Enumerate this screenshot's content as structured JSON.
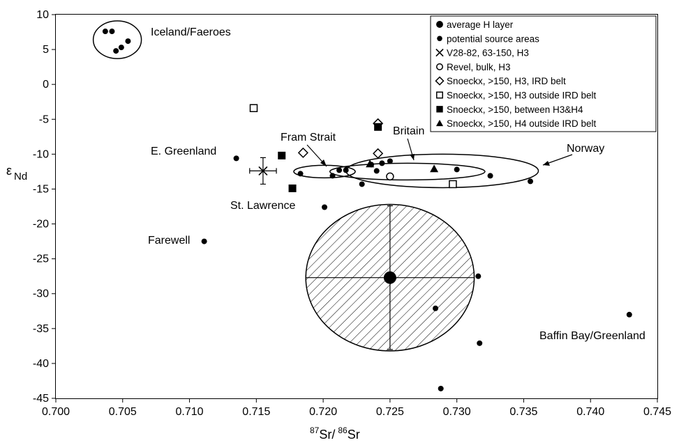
{
  "chart_data": {
    "type": "scatter",
    "title": "",
    "xlabel_sup1": "87",
    "xlabel_main1": "Sr/",
    "xlabel_sup2": "86",
    "xlabel_main2": "Sr",
    "ylabel_main": "ε",
    "ylabel_sub": "Nd",
    "xlim": [
      0.7,
      0.745
    ],
    "ylim": [
      -45,
      10
    ],
    "x_ticks": [
      "0.700",
      "0.705",
      "0.710",
      "0.715",
      "0.720",
      "0.725",
      "0.730",
      "0.735",
      "0.740",
      "0.745"
    ],
    "y_ticks": [
      "10",
      "5",
      "0",
      "-5",
      "-10",
      "-15",
      "-20",
      "-25",
      "-30",
      "-35",
      "-40",
      "-45"
    ],
    "legend_position": "top-right",
    "legend": [
      "average H layer",
      "potential source areas",
      "V28-82, 63-150, H3",
      "Revel, bulk, H3",
      "Snoeckx, >150, H3, IRD belt",
      "Snoeckx, >150, H3 outside IRD belt",
      "Snoeckx, >150, between H3&H4",
      "Snoeckx, >150, H4 outside IRD belt"
    ],
    "region_labels": [
      "Iceland/Faeroes",
      "E. Greenland",
      "Fram Strait",
      "Britain",
      "Norway",
      "St. Lawrence",
      "Farewell",
      "Baffin Bay/Greenland"
    ],
    "series": [
      {
        "name": "average H layer",
        "marker": "large-filled-circle",
        "points": [
          [
            0.725,
            -27.7
          ]
        ],
        "x_error": 0.0063,
        "y_error": 10.3,
        "shaded_ellipse": {
          "cx": 0.725,
          "cy": -27.7,
          "rx": 0.0063,
          "ry": 10.5
        }
      },
      {
        "name": "potential source areas",
        "marker": "small-filled-circle",
        "points": [
          [
            0.7037,
            7.6
          ],
          [
            0.7042,
            7.6
          ],
          [
            0.7045,
            4.8
          ],
          [
            0.7049,
            5.3
          ],
          [
            0.7054,
            6.2
          ],
          [
            0.7135,
            -10.6
          ],
          [
            0.7183,
            -12.8
          ],
          [
            0.7207,
            -13.1
          ],
          [
            0.7212,
            -12.3
          ],
          [
            0.7217,
            -12.3
          ],
          [
            0.7229,
            -14.3
          ],
          [
            0.7236,
            -11.5
          ],
          [
            0.724,
            -12.4
          ],
          [
            0.7244,
            -11.3
          ],
          [
            0.725,
            -11.0
          ],
          [
            0.73,
            -12.2
          ],
          [
            0.7325,
            -13.1
          ],
          [
            0.7355,
            -13.9
          ],
          [
            0.7201,
            -17.6
          ],
          [
            0.7111,
            -22.5
          ],
          [
            0.7316,
            -27.5
          ],
          [
            0.7284,
            -32.1
          ],
          [
            0.7317,
            -37.1
          ],
          [
            0.7288,
            -43.6
          ],
          [
            0.7429,
            -33.0
          ]
        ]
      },
      {
        "name": "V28-82, 63-150, H3",
        "marker": "x-cross",
        "points": [
          [
            0.7155,
            -12.4
          ]
        ],
        "x_error": 0.001,
        "y_error": 1.9
      },
      {
        "name": "Revel, bulk, H3",
        "marker": "open-circle",
        "points": [
          [
            0.725,
            -13.2
          ]
        ]
      },
      {
        "name": "Snoeckx, >150, H3, IRD belt",
        "marker": "open-diamond",
        "points": [
          [
            0.7185,
            -9.8
          ],
          [
            0.7241,
            -9.9
          ],
          [
            0.7241,
            -5.6
          ]
        ]
      },
      {
        "name": "Snoeckx, >150, H3 outside IRD belt",
        "marker": "open-square",
        "points": [
          [
            0.7148,
            -3.4
          ],
          [
            0.7297,
            -14.3
          ]
        ]
      },
      {
        "name": "Snoeckx, >150, between H3&H4",
        "marker": "filled-square",
        "points": [
          [
            0.7169,
            -10.2
          ],
          [
            0.7177,
            -14.9
          ],
          [
            0.7241,
            -6.1
          ]
        ]
      },
      {
        "name": "Snoeckx, >150, H4 outside IRD belt",
        "marker": "filled-triangle",
        "points": [
          [
            0.7235,
            -11.4
          ],
          [
            0.7283,
            -12.1
          ]
        ]
      }
    ],
    "region_ellipses": [
      {
        "region": "Iceland/Faeroes",
        "cx": 0.7046,
        "cy": 6.4,
        "rx": 0.0018,
        "ry": 2.7
      },
      {
        "region": "Fram Strait",
        "cx": 0.7201,
        "cy": -12.5,
        "rx": 0.0023,
        "ry": 0.9
      },
      {
        "region": "Britain",
        "cx": 0.7263,
        "cy": -12.5,
        "rx": 0.0058,
        "ry": 1.2
      },
      {
        "region": "Norway",
        "cx": 0.7289,
        "cy": -12.4,
        "rx": 0.0072,
        "ry": 2.4
      }
    ]
  }
}
